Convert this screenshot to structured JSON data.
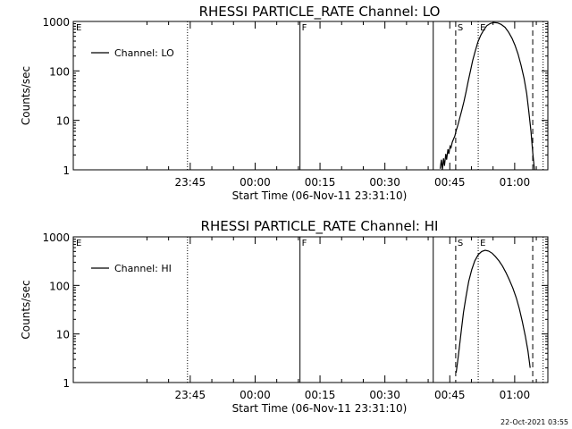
{
  "chart_data": [
    {
      "type": "line",
      "title": "RHESSI PARTICLE_RATE Channel: LO",
      "xlabel": "Start Time (06-Nov-11 23:31:10)",
      "ylabel": "Counts/sec",
      "yscale": "log",
      "ylim": [
        1,
        1000
      ],
      "xlim": [
        -12.2,
        97.5
      ],
      "x_unit": "minutes after 23:31:10",
      "x_ticks": [
        {
          "x": 14.83,
          "label": "23:45"
        },
        {
          "x": 29.83,
          "label": "00:00"
        },
        {
          "x": 44.83,
          "label": "00:15"
        },
        {
          "x": 59.83,
          "label": "00:30"
        },
        {
          "x": 74.83,
          "label": "00:45"
        },
        {
          "x": 89.83,
          "label": "01:00"
        }
      ],
      "y_ticks": [
        {
          "y": 1,
          "label": "1"
        },
        {
          "y": 10,
          "label": "10"
        },
        {
          "y": 100,
          "label": "100"
        },
        {
          "y": 1000,
          "label": "1000"
        }
      ],
      "legend": {
        "label": "Channel: LO",
        "position": "top-left"
      },
      "markers": [
        {
          "x": -12.0,
          "label": "E"
        },
        {
          "x": 40.2,
          "label": "F"
        },
        {
          "x": 76.2,
          "label": "S"
        },
        {
          "x": 81.4,
          "label": "E"
        }
      ],
      "vlines": [
        {
          "x": 14.2,
          "style": "dotted"
        },
        {
          "x": 40.2,
          "style": "solid"
        },
        {
          "x": 71.0,
          "style": "solid"
        },
        {
          "x": 76.2,
          "style": "dashed"
        },
        {
          "x": 81.4,
          "style": "dotted"
        },
        {
          "x": 94.0,
          "style": "dashed"
        },
        {
          "x": 96.4,
          "style": "dotted"
        }
      ],
      "series": [
        {
          "x": [
            72.6,
            72.9,
            73.1,
            73.4,
            73.6,
            73.9,
            74.1,
            74.4,
            74.6,
            74.9,
            75.1,
            75.4,
            75.7,
            76.0,
            76.3,
            76.7,
            77.1,
            77.6,
            78.1,
            78.6,
            79.1,
            79.6,
            80.1,
            80.7,
            81.3,
            82.0,
            82.7,
            83.4,
            84.2,
            85.0,
            85.9,
            86.7,
            87.6,
            88.4,
            89.2,
            89.9,
            90.6,
            91.3,
            92.0,
            92.6,
            93.1,
            93.6,
            94.0,
            94.4
          ],
          "y": [
            1.05,
            1.6,
            1.0,
            1.7,
            1.2,
            2.1,
            1.6,
            2.6,
            2.1,
            3.0,
            2.8,
            3.6,
            4.2,
            4.8,
            6.2,
            8.0,
            11,
            16,
            24,
            38,
            62,
            100,
            160,
            250,
            380,
            530,
            680,
            820,
            910,
            950,
            930,
            870,
            760,
            610,
            460,
            330,
            220,
            130,
            70,
            35,
            15,
            6,
            2.2,
            1.0
          ]
        }
      ]
    },
    {
      "type": "line",
      "title": "RHESSI PARTICLE_RATE Channel: HI",
      "xlabel": "Start Time (06-Nov-11 23:31:10)",
      "ylabel": "Counts/sec",
      "yscale": "log",
      "ylim": [
        1,
        1000
      ],
      "xlim": [
        -12.2,
        97.5
      ],
      "x_unit": "minutes after 23:31:10",
      "x_ticks": [
        {
          "x": 14.83,
          "label": "23:45"
        },
        {
          "x": 29.83,
          "label": "00:00"
        },
        {
          "x": 44.83,
          "label": "00:15"
        },
        {
          "x": 59.83,
          "label": "00:30"
        },
        {
          "x": 74.83,
          "label": "00:45"
        },
        {
          "x": 89.83,
          "label": "01:00"
        }
      ],
      "y_ticks": [
        {
          "y": 1,
          "label": "1"
        },
        {
          "y": 10,
          "label": "10"
        },
        {
          "y": 100,
          "label": "100"
        },
        {
          "y": 1000,
          "label": "1000"
        }
      ],
      "legend": {
        "label": "Channel: HI",
        "position": "top-left"
      },
      "markers": [
        {
          "x": -12.0,
          "label": "E"
        },
        {
          "x": 40.2,
          "label": "F"
        },
        {
          "x": 76.2,
          "label": "S"
        },
        {
          "x": 81.4,
          "label": "E"
        }
      ],
      "vlines": [
        {
          "x": 14.2,
          "style": "dotted"
        },
        {
          "x": 40.2,
          "style": "solid"
        },
        {
          "x": 71.0,
          "style": "solid"
        },
        {
          "x": 76.2,
          "style": "dashed"
        },
        {
          "x": 81.4,
          "style": "dotted"
        },
        {
          "x": 94.0,
          "style": "dashed"
        },
        {
          "x": 96.4,
          "style": "dotted"
        }
      ],
      "series": [
        {
          "x": [
            76.3,
            76.6,
            77.0,
            77.5,
            78.0,
            78.6,
            79.2,
            79.9,
            80.6,
            81.4,
            82.2,
            83.0,
            83.8,
            84.6,
            85.4,
            86.2,
            87.0,
            87.8,
            88.6,
            89.4,
            90.2,
            90.9,
            91.6,
            92.3,
            92.9,
            93.4
          ],
          "y": [
            1.6,
            2.5,
            5,
            12,
            28,
            60,
            120,
            210,
            320,
            430,
            500,
            530,
            510,
            460,
            390,
            320,
            250,
            185,
            130,
            88,
            55,
            33,
            18,
            9,
            4.5,
            2.0
          ]
        }
      ]
    }
  ],
  "footer": {
    "timestamp": "22-Oct-2021 03:55"
  }
}
